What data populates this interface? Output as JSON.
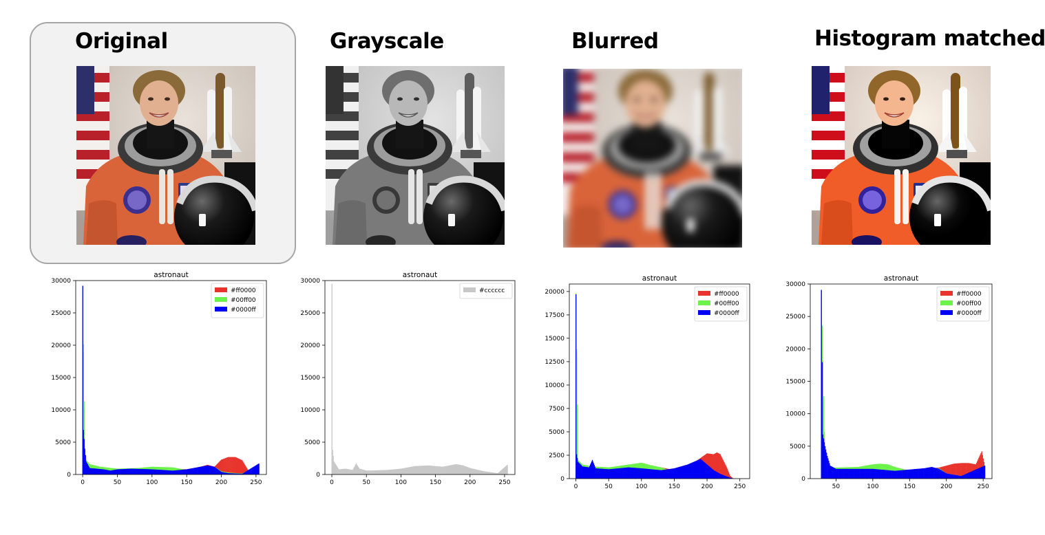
{
  "panels": [
    {
      "title": "Original",
      "selected": true,
      "image": "astronaut-photo",
      "filter": "none"
    },
    {
      "title": "Grayscale",
      "selected": false,
      "image": "astronaut-photo",
      "filter": "grayscale"
    },
    {
      "title": "Blurred",
      "selected": false,
      "image": "astronaut-photo",
      "filter": "blur"
    },
    {
      "title": "Histogram matched",
      "selected": false,
      "image": "astronaut-photo",
      "filter": "contrast"
    }
  ],
  "chart_data": [
    {
      "type": "bar",
      "title": "astronaut",
      "xlim": [
        -10,
        265
      ],
      "ylim": [
        0,
        30000
      ],
      "xticks": [
        0,
        50,
        100,
        150,
        200,
        250
      ],
      "yticks": [
        0,
        5000,
        10000,
        15000,
        20000,
        25000,
        30000
      ],
      "legend": "top-right",
      "series": [
        {
          "name": "#ff0000",
          "color": "#e8342c",
          "points": [
            [
              0,
              28000
            ],
            [
              3,
              900
            ],
            [
              10,
              1000
            ],
            [
              25,
              900
            ],
            [
              50,
              800
            ],
            [
              80,
              700
            ],
            [
              100,
              900
            ],
            [
              130,
              900
            ],
            [
              150,
              800
            ],
            [
              170,
              1200
            ],
            [
              180,
              1500
            ],
            [
              190,
              1200
            ],
            [
              200,
              2300
            ],
            [
              210,
              2700
            ],
            [
              220,
              2700
            ],
            [
              230,
              2200
            ],
            [
              240,
              400
            ],
            [
              250,
              600
            ],
            [
              254,
              1200
            ]
          ]
        },
        {
          "name": "#00ff00",
          "color": "#6cf24a",
          "points": [
            [
              0,
              29000
            ],
            [
              3,
              2500
            ],
            [
              10,
              1600
            ],
            [
              25,
              1200
            ],
            [
              50,
              900
            ],
            [
              80,
              1000
            ],
            [
              100,
              1200
            ],
            [
              130,
              1100
            ],
            [
              150,
              700
            ],
            [
              170,
              1100
            ],
            [
              180,
              1000
            ],
            [
              190,
              1200
            ],
            [
              200,
              500
            ],
            [
              210,
              300
            ],
            [
              230,
              150
            ],
            [
              254,
              1500
            ]
          ]
        },
        {
          "name": "#0000ff",
          "color": "#0000f5",
          "points": [
            [
              0,
              29200
            ],
            [
              1,
              6900
            ],
            [
              2,
              5500
            ],
            [
              3,
              4000
            ],
            [
              5,
              2000
            ],
            [
              10,
              1000
            ],
            [
              20,
              900
            ],
            [
              30,
              800
            ],
            [
              40,
              600
            ],
            [
              50,
              800
            ],
            [
              70,
              900
            ],
            [
              100,
              800
            ],
            [
              130,
              600
            ],
            [
              150,
              800
            ],
            [
              170,
              1200
            ],
            [
              180,
              1400
            ],
            [
              190,
              1200
            ],
            [
              200,
              400
            ],
            [
              210,
              200
            ],
            [
              230,
              100
            ],
            [
              254,
              1700
            ]
          ]
        }
      ]
    },
    {
      "type": "bar",
      "title": "astronaut",
      "xlim": [
        -10,
        265
      ],
      "ylim": [
        0,
        30000
      ],
      "xticks": [
        0,
        50,
        100,
        150,
        200,
        250
      ],
      "yticks": [
        0,
        5000,
        10000,
        15000,
        20000,
        25000,
        30000
      ],
      "legend": "top-right",
      "series": [
        {
          "name": "#cccccc",
          "color": "#c8c8c8",
          "points": [
            [
              0,
              29500
            ],
            [
              1,
              3800
            ],
            [
              3,
              2000
            ],
            [
              10,
              800
            ],
            [
              20,
              900
            ],
            [
              30,
              700
            ],
            [
              35,
              1700
            ],
            [
              40,
              900
            ],
            [
              50,
              600
            ],
            [
              80,
              700
            ],
            [
              100,
              900
            ],
            [
              120,
              1300
            ],
            [
              140,
              1400
            ],
            [
              160,
              1200
            ],
            [
              180,
              1600
            ],
            [
              190,
              1400
            ],
            [
              200,
              1000
            ],
            [
              220,
              500
            ],
            [
              240,
              200
            ],
            [
              254,
              1500
            ]
          ]
        }
      ]
    },
    {
      "type": "bar",
      "title": "astronaut",
      "xlim": [
        -10,
        265
      ],
      "ylim": [
        0,
        20800
      ],
      "xticks": [
        0,
        50,
        100,
        150,
        200,
        250
      ],
      "yticks": [
        0,
        2500,
        5000,
        7500,
        10000,
        12500,
        15000,
        17500,
        20000
      ],
      "legend": "top-right",
      "series": [
        {
          "name": "#ff0000",
          "color": "#e8342c",
          "points": [
            [
              0,
              19500
            ],
            [
              3,
              1500
            ],
            [
              10,
              1300
            ],
            [
              25,
              1200
            ],
            [
              50,
              1100
            ],
            [
              80,
              1200
            ],
            [
              100,
              1200
            ],
            [
              130,
              1200
            ],
            [
              150,
              900
            ],
            [
              170,
              1400
            ],
            [
              180,
              1700
            ],
            [
              190,
              2200
            ],
            [
              200,
              2700
            ],
            [
              210,
              2600
            ],
            [
              215,
              2800
            ],
            [
              220,
              2600
            ],
            [
              230,
              1200
            ],
            [
              235,
              300
            ],
            [
              240,
              0
            ]
          ]
        },
        {
          "name": "#00ff00",
          "color": "#6cf24a",
          "points": [
            [
              0,
              19800
            ],
            [
              3,
              2000
            ],
            [
              10,
              1500
            ],
            [
              25,
              1300
            ],
            [
              50,
              1200
            ],
            [
              80,
              1500
            ],
            [
              100,
              1700
            ],
            [
              110,
              1500
            ],
            [
              130,
              1200
            ],
            [
              150,
              700
            ],
            [
              170,
              1300
            ],
            [
              190,
              1500
            ],
            [
              200,
              800
            ],
            [
              210,
              400
            ],
            [
              220,
              200
            ],
            [
              235,
              0
            ]
          ]
        },
        {
          "name": "#0000ff",
          "color": "#0000f5",
          "points": [
            [
              0,
              19700
            ],
            [
              1,
              2600
            ],
            [
              3,
              1800
            ],
            [
              10,
              1300
            ],
            [
              20,
              1200
            ],
            [
              25,
              2000
            ],
            [
              30,
              1100
            ],
            [
              50,
              1000
            ],
            [
              80,
              1200
            ],
            [
              100,
              1100
            ],
            [
              130,
              900
            ],
            [
              150,
              1100
            ],
            [
              170,
              1500
            ],
            [
              180,
              1800
            ],
            [
              190,
              2100
            ],
            [
              200,
              1500
            ],
            [
              210,
              900
            ],
            [
              220,
              500
            ],
            [
              235,
              100
            ],
            [
              240,
              0
            ]
          ]
        }
      ]
    },
    {
      "type": "bar",
      "title": "astronaut",
      "xlim": [
        15,
        262
      ],
      "ylim": [
        0,
        30000
      ],
      "xticks": [
        50,
        100,
        150,
        200,
        250
      ],
      "yticks": [
        0,
        5000,
        10000,
        15000,
        20000,
        25000,
        30000
      ],
      "legend": "top-right",
      "series": [
        {
          "name": "#ff0000",
          "color": "#e8342c",
          "points": [
            [
              30,
              28500
            ],
            [
              35,
              1500
            ],
            [
              50,
              1300
            ],
            [
              80,
              1200
            ],
            [
              100,
              1400
            ],
            [
              130,
              1200
            ],
            [
              150,
              1300
            ],
            [
              170,
              1500
            ],
            [
              190,
              1700
            ],
            [
              200,
              2000
            ],
            [
              210,
              2300
            ],
            [
              220,
              2400
            ],
            [
              230,
              2400
            ],
            [
              240,
              2200
            ],
            [
              248,
              4200
            ],
            [
              252,
              2000
            ]
          ]
        },
        {
          "name": "#00ff00",
          "color": "#6cf24a",
          "points": [
            [
              30,
              29000
            ],
            [
              35,
              1800
            ],
            [
              50,
              1700
            ],
            [
              80,
              1800
            ],
            [
              100,
              2200
            ],
            [
              110,
              2300
            ],
            [
              120,
              2200
            ],
            [
              130,
              1800
            ],
            [
              150,
              1200
            ],
            [
              170,
              1500
            ],
            [
              190,
              1600
            ],
            [
              200,
              800
            ],
            [
              220,
              400
            ],
            [
              252,
              900
            ]
          ]
        },
        {
          "name": "#0000ff",
          "color": "#0000f5",
          "points": [
            [
              30,
              29100
            ],
            [
              32,
              6800
            ],
            [
              35,
              5000
            ],
            [
              38,
              3500
            ],
            [
              42,
              2000
            ],
            [
              50,
              1500
            ],
            [
              70,
              1500
            ],
            [
              100,
              1500
            ],
            [
              130,
              1200
            ],
            [
              150,
              1400
            ],
            [
              170,
              1600
            ],
            [
              180,
              1800
            ],
            [
              190,
              1500
            ],
            [
              200,
              800
            ],
            [
              220,
              400
            ],
            [
              252,
              2000
            ]
          ]
        }
      ]
    }
  ]
}
